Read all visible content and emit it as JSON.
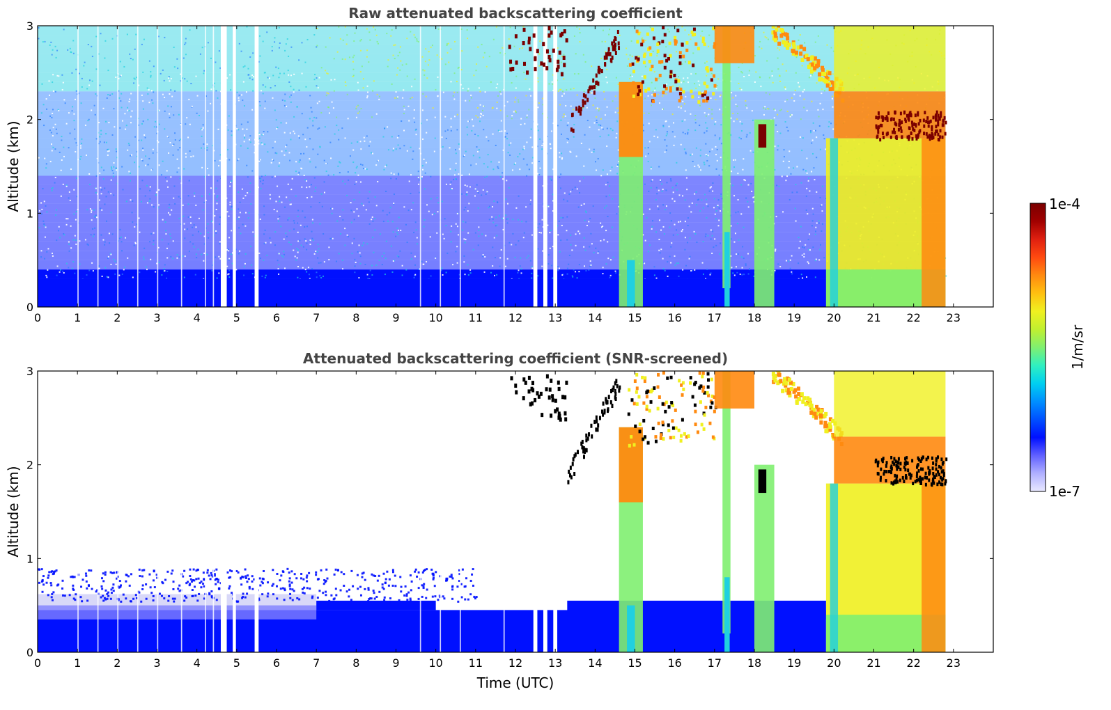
{
  "colors": {
    "low_faint": "#d8d8f8",
    "low": "#0010ff",
    "blue_light": "#2a7fff",
    "cyan": "#20d0e0",
    "green": "#80f070",
    "yellow": "#f0f020",
    "orange": "#ff8a10",
    "red": "#e02010",
    "darkred": "#7a0000",
    "black": "#000000",
    "title": "#444444"
  },
  "chart_data": [
    {
      "type": "heatmap",
      "title": "Raw attenuated backscattering coefficient",
      "xlabel": "",
      "ylabel": "Altitude (km)",
      "xlim": [
        0,
        24
      ],
      "ylim": [
        0,
        3
      ],
      "xticks": [
        "0",
        "1",
        "2",
        "3",
        "4",
        "5",
        "6",
        "7",
        "8",
        "9",
        "10",
        "11",
        "12",
        "13",
        "14",
        "15",
        "16",
        "17",
        "18",
        "19",
        "20",
        "21",
        "22",
        "23"
      ],
      "yticks": [
        "0",
        "1",
        "2",
        "3"
      ],
      "data_end_hour": 22.8,
      "gaps_hours": [
        [
          4.6,
          4.75
        ],
        [
          4.9,
          4.98
        ],
        [
          5.45,
          5.55
        ],
        [
          12.45,
          12.55
        ],
        [
          12.7,
          12.8
        ],
        [
          12.95,
          13.05
        ]
      ],
      "features": [
        {
          "name": "boundary layer",
          "hours": [
            0,
            22.8
          ],
          "alt_km": [
            0,
            0.35
          ],
          "level": "low"
        },
        {
          "name": "cirrus 12-13h",
          "hours": [
            11.8,
            13.3
          ],
          "alt_km": [
            2.5,
            3.0
          ],
          "level": "darkred"
        },
        {
          "name": "cloud 14.5-15.2h",
          "hours": [
            14.6,
            15.2
          ],
          "alt_km": [
            0,
            2.4
          ],
          "level": "orange"
        },
        {
          "name": "cloud 17.3h",
          "hours": [
            17.2,
            17.4
          ],
          "alt_km": [
            0,
            3.0
          ],
          "level": "cyan"
        },
        {
          "name": "cloud 18.0-18.5h",
          "hours": [
            18.0,
            18.5
          ],
          "alt_km": [
            0,
            2.0
          ],
          "level": "green"
        },
        {
          "name": "cloud 19.8-22.8h",
          "hours": [
            19.8,
            22.8
          ],
          "alt_km": [
            0,
            3.0
          ],
          "level": "yellow"
        },
        {
          "name": "cloud top 21-22.8h",
          "hours": [
            21.0,
            22.8
          ],
          "alt_km": [
            1.8,
            2.1
          ],
          "level": "darkred"
        }
      ]
    },
    {
      "type": "heatmap",
      "title": "Attenuated backscattering coefficient (SNR-screened)",
      "xlabel": "Time (UTC)",
      "ylabel": "Altitude (km)",
      "xlim": [
        0,
        24
      ],
      "ylim": [
        0,
        3
      ],
      "xticks": [
        "0",
        "1",
        "2",
        "3",
        "4",
        "5",
        "6",
        "7",
        "8",
        "9",
        "10",
        "11",
        "12",
        "13",
        "14",
        "15",
        "16",
        "17",
        "18",
        "19",
        "20",
        "21",
        "22",
        "23"
      ],
      "yticks": [
        "0",
        "1",
        "2",
        "3"
      ],
      "data_end_hour": 22.8,
      "features": [
        {
          "name": "boundary layer",
          "hours": [
            0,
            19.8
          ],
          "alt_km": [
            0,
            0.6
          ],
          "level": "low"
        },
        {
          "name": "cirrus 12-13h",
          "hours": [
            11.8,
            13.3
          ],
          "alt_km": [
            2.5,
            3.0
          ],
          "level": "black"
        },
        {
          "name": "cloud 14.5-15.2h",
          "hours": [
            14.6,
            15.2
          ],
          "alt_km": [
            0,
            2.4
          ],
          "level": "orange"
        },
        {
          "name": "cloud 17.3h",
          "hours": [
            17.2,
            17.4
          ],
          "alt_km": [
            0,
            3.0
          ],
          "level": "cyan"
        },
        {
          "name": "cloud 18.0-18.5h",
          "hours": [
            18.0,
            18.5
          ],
          "alt_km": [
            0,
            2.0
          ],
          "level": "green"
        },
        {
          "name": "cloud 19.8-22.8h",
          "hours": [
            19.8,
            22.8
          ],
          "alt_km": [
            0,
            3.0
          ],
          "level": "yellow"
        }
      ]
    }
  ],
  "colorbar": {
    "max_label": "1e-4",
    "min_label": "1e-7",
    "unit_label": "1/m/sr",
    "colors": [
      "#e8e8ff",
      "#b0b0ff",
      "#6060ff",
      "#0010ff",
      "#0050ff",
      "#0090ff",
      "#00d0f0",
      "#30f0c0",
      "#80f070",
      "#c0f030",
      "#f0f020",
      "#ffc010",
      "#ff8a10",
      "#ff4a10",
      "#e02010",
      "#a00000",
      "#7a0000"
    ]
  }
}
